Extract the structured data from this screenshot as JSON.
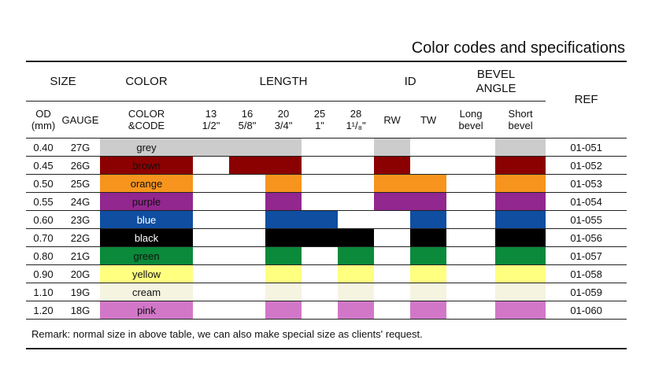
{
  "title": "Color codes and specifications",
  "headers": {
    "size": "SIZE",
    "color": "COLOR",
    "length": "LENGTH",
    "id": "ID",
    "bevel_line1": "BEVEL",
    "bevel_line2": "ANGLE",
    "ref": "REF"
  },
  "subheaders": {
    "od_line1": "OD",
    "od_line2": "(mm)",
    "gauge": "GAUGE",
    "color_line1": "COLOR",
    "color_line2": "&CODE",
    "lengths": [
      {
        "mm": "13",
        "inch": "1/2\""
      },
      {
        "mm": "16",
        "inch": "5/8\""
      },
      {
        "mm": "20",
        "inch": "3/4\""
      },
      {
        "mm": "25",
        "inch": "1\""
      },
      {
        "mm": "28",
        "inch": "1¹/₈\""
      }
    ],
    "rw": "RW",
    "tw": "TW",
    "long_line1": "Long",
    "long_line2": "bevel",
    "short_line1": "Short",
    "short_line2": "bevel"
  },
  "colors": {
    "grey": "#cccccc",
    "brown": "#8b0000",
    "orange": "#f7941d",
    "purple": "#92278f",
    "blue": "#0f4ea1",
    "black": "#000000",
    "green": "#0a8a3a",
    "yellow": "#ffff80",
    "cream": "#f4f4e0",
    "pink": "#d277c8"
  },
  "rows": [
    {
      "od": "0.40",
      "gauge": "27G",
      "color_code": "grey",
      "color_name": "grey",
      "len": [
        true,
        true,
        true,
        false,
        false
      ],
      "rw": true,
      "tw": false,
      "long": false,
      "short": true,
      "ref": "01-051"
    },
    {
      "od": "0.45",
      "gauge": "26G",
      "color_code": "brown",
      "color_name": "brown",
      "len": [
        false,
        true,
        true,
        false,
        false
      ],
      "rw": true,
      "tw": false,
      "long": false,
      "short": true,
      "ref": "01-052"
    },
    {
      "od": "0.50",
      "gauge": "25G",
      "color_code": "orange",
      "color_name": "orange",
      "len": [
        false,
        false,
        true,
        false,
        false
      ],
      "rw": true,
      "tw": true,
      "long": false,
      "short": true,
      "ref": "01-053"
    },
    {
      "od": "0.55",
      "gauge": "24G",
      "color_code": "purple",
      "color_name": "purple",
      "len": [
        false,
        false,
        true,
        false,
        false
      ],
      "rw": true,
      "tw": true,
      "long": false,
      "short": true,
      "ref": "01-054"
    },
    {
      "od": "0.60",
      "gauge": "23G",
      "color_code": "blue",
      "color_name": "blue",
      "len": [
        false,
        false,
        true,
        true,
        false
      ],
      "rw": false,
      "tw": true,
      "long": false,
      "short": true,
      "ref": "01-055"
    },
    {
      "od": "0.70",
      "gauge": "22G",
      "color_code": "black",
      "color_name": "black",
      "len": [
        false,
        false,
        true,
        true,
        true
      ],
      "rw": false,
      "tw": true,
      "long": false,
      "short": true,
      "ref": "01-056"
    },
    {
      "od": "0.80",
      "gauge": "21G",
      "color_code": "green",
      "color_name": "green",
      "len": [
        false,
        false,
        true,
        false,
        true
      ],
      "rw": false,
      "tw": true,
      "long": false,
      "short": true,
      "ref": "01-057"
    },
    {
      "od": "0.90",
      "gauge": "20G",
      "color_code": "yellow",
      "color_name": "yellow",
      "len": [
        false,
        false,
        true,
        false,
        true
      ],
      "rw": false,
      "tw": true,
      "long": false,
      "short": true,
      "ref": "01-058"
    },
    {
      "od": "1.10",
      "gauge": "19G",
      "color_code": "cream",
      "color_name": "cream",
      "len": [
        false,
        false,
        true,
        false,
        true
      ],
      "rw": false,
      "tw": true,
      "long": false,
      "short": true,
      "ref": "01-059"
    },
    {
      "od": "1.20",
      "gauge": "18G",
      "color_code": "pink",
      "color_name": "pink",
      "len": [
        false,
        false,
        true,
        false,
        true
      ],
      "rw": false,
      "tw": true,
      "long": false,
      "short": true,
      "ref": "01-060"
    }
  ],
  "remark": "Remark: normal size in above table, we can also make special size as clients' request."
}
